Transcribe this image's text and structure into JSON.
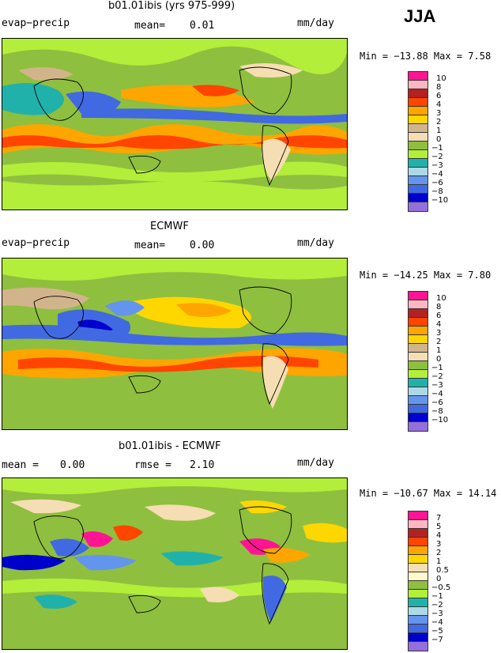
{
  "season": "JJA",
  "panels": [
    {
      "title": "b01.01ibis (yrs 975-999)",
      "left_label": "evap−precip",
      "mid_label": "mean=",
      "mid_value": "0.01",
      "units": "mm/day",
      "min_max": "Min = −13.88 Max =    7.58",
      "colorbar_labels": [
        "10",
        "8",
        "6",
        "4",
        "3",
        "2",
        "1",
        "0",
        "−1",
        "−2",
        "−3",
        "−4",
        "−6",
        "−8",
        "−10"
      ],
      "colorbar_colors": [
        "#ff1493",
        "#ffb6c1",
        "#b22222",
        "#ff4500",
        "#ffa500",
        "#ffd700",
        "#d2b48c",
        "#f5deb3",
        "#8fbf3f",
        "#b3ee3a",
        "#20b2aa",
        "#add8e6",
        "#6495ed",
        "#4169e1",
        "#0000cd",
        "#9370db"
      ]
    },
    {
      "title": "ECMWF",
      "left_label": "evap−precip",
      "mid_label": "mean=",
      "mid_value": "0.00",
      "units": "mm/day",
      "min_max": "Min = −14.25 Max =    7.80",
      "colorbar_labels": [
        "10",
        "8",
        "6",
        "4",
        "3",
        "2",
        "1",
        "0",
        "−1",
        "−2",
        "−3",
        "−4",
        "−6",
        "−8",
        "−10"
      ],
      "colorbar_colors": [
        "#ff1493",
        "#ffb6c1",
        "#b22222",
        "#ff4500",
        "#ffa500",
        "#ffd700",
        "#d2b48c",
        "#f5deb3",
        "#8fbf3f",
        "#b3ee3a",
        "#20b2aa",
        "#add8e6",
        "#6495ed",
        "#4169e1",
        "#0000cd",
        "#9370db"
      ]
    },
    {
      "title": "b01.01ibis - ECMWF",
      "left_label": "mean =",
      "left_value": "0.00",
      "mid_label": "rmse =",
      "mid_value": "2.10",
      "units": "mm/day",
      "min_max": "Min = −10.67 Max =   14.14",
      "colorbar_labels": [
        "7",
        "5",
        "4",
        "3",
        "2",
        "1",
        "0.5",
        "0",
        "−0.5",
        "−1",
        "−2",
        "−3",
        "−4",
        "−5",
        "−7"
      ],
      "colorbar_colors": [
        "#ff1493",
        "#ffb6c1",
        "#b22222",
        "#ff4500",
        "#ffa500",
        "#ffd700",
        "#f5deb3",
        "#fffacd",
        "#8fbf3f",
        "#b3ee3a",
        "#20b2aa",
        "#add8e6",
        "#6495ed",
        "#4169e1",
        "#0000cd",
        "#9370db"
      ]
    }
  ]
}
